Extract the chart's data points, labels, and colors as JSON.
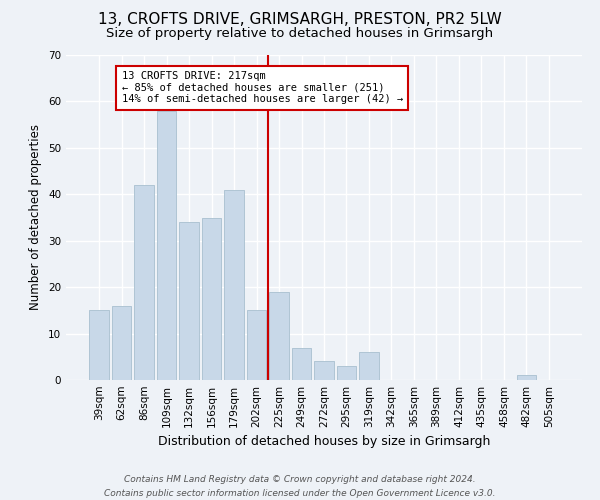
{
  "title": "13, CROFTS DRIVE, GRIMSARGH, PRESTON, PR2 5LW",
  "subtitle": "Size of property relative to detached houses in Grimsargh",
  "xlabel": "Distribution of detached houses by size in Grimsargh",
  "ylabel": "Number of detached properties",
  "bar_color": "#c8d8e8",
  "bar_edge_color": "#a8bfcf",
  "background_color": "#eef2f7",
  "grid_color": "#ffffff",
  "categories": [
    "39sqm",
    "62sqm",
    "86sqm",
    "109sqm",
    "132sqm",
    "156sqm",
    "179sqm",
    "202sqm",
    "225sqm",
    "249sqm",
    "272sqm",
    "295sqm",
    "319sqm",
    "342sqm",
    "365sqm",
    "389sqm",
    "412sqm",
    "435sqm",
    "458sqm",
    "482sqm",
    "505sqm"
  ],
  "values": [
    15,
    16,
    42,
    58,
    34,
    35,
    41,
    15,
    19,
    7,
    4,
    3,
    6,
    0,
    0,
    0,
    0,
    0,
    0,
    1,
    0
  ],
  "ylim": [
    0,
    70
  ],
  "yticks": [
    0,
    10,
    20,
    30,
    40,
    50,
    60,
    70
  ],
  "vline_color": "#cc0000",
  "annotation_text": "13 CROFTS DRIVE: 217sqm\n← 85% of detached houses are smaller (251)\n14% of semi-detached houses are larger (42) →",
  "annotation_box_color": "white",
  "annotation_box_edge_color": "#cc0000",
  "footer_line1": "Contains HM Land Registry data © Crown copyright and database right 2024.",
  "footer_line2": "Contains public sector information licensed under the Open Government Licence v3.0.",
  "title_fontsize": 11,
  "subtitle_fontsize": 9.5,
  "xlabel_fontsize": 9,
  "ylabel_fontsize": 8.5,
  "tick_fontsize": 7.5,
  "annotation_fontsize": 7.5,
  "footer_fontsize": 6.5
}
